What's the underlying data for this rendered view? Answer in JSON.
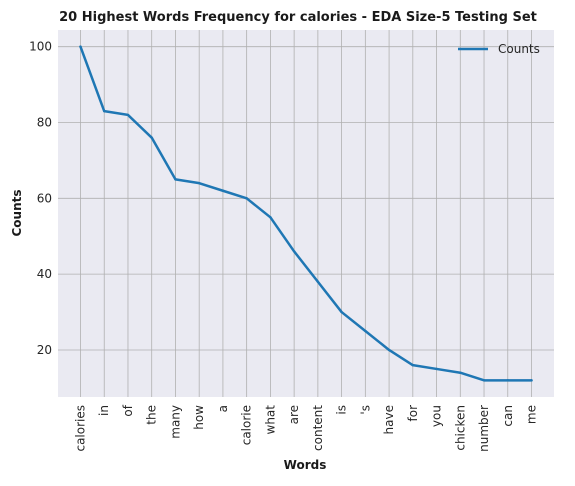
{
  "chart_data": {
    "type": "line",
    "title": "20 Highest Words Frequency for calories - EDA Size-5 Testing Set",
    "xlabel": "Words",
    "ylabel": "Counts",
    "categories": [
      "calories",
      "in",
      "of",
      "the",
      "many",
      "how",
      "a",
      "calorie",
      "what",
      "are",
      "content",
      "is",
      "'s",
      "have",
      "for",
      "you",
      "chicken",
      "number",
      "can",
      "me"
    ],
    "series": [
      {
        "name": "Counts",
        "values": [
          100,
          83,
          82,
          76,
          65,
          64,
          62,
          60,
          55,
          46,
          38,
          30,
          25,
          20,
          16,
          15,
          14,
          12,
          12,
          12
        ],
        "color": "#1f77b4"
      }
    ],
    "ylim": [
      7.6,
      104.4
    ],
    "yticks": [
      20,
      40,
      60,
      80,
      100
    ],
    "grid": true,
    "legend": "top-right",
    "background": "#eaeaf2",
    "grid_color": "#b0b0b0"
  }
}
